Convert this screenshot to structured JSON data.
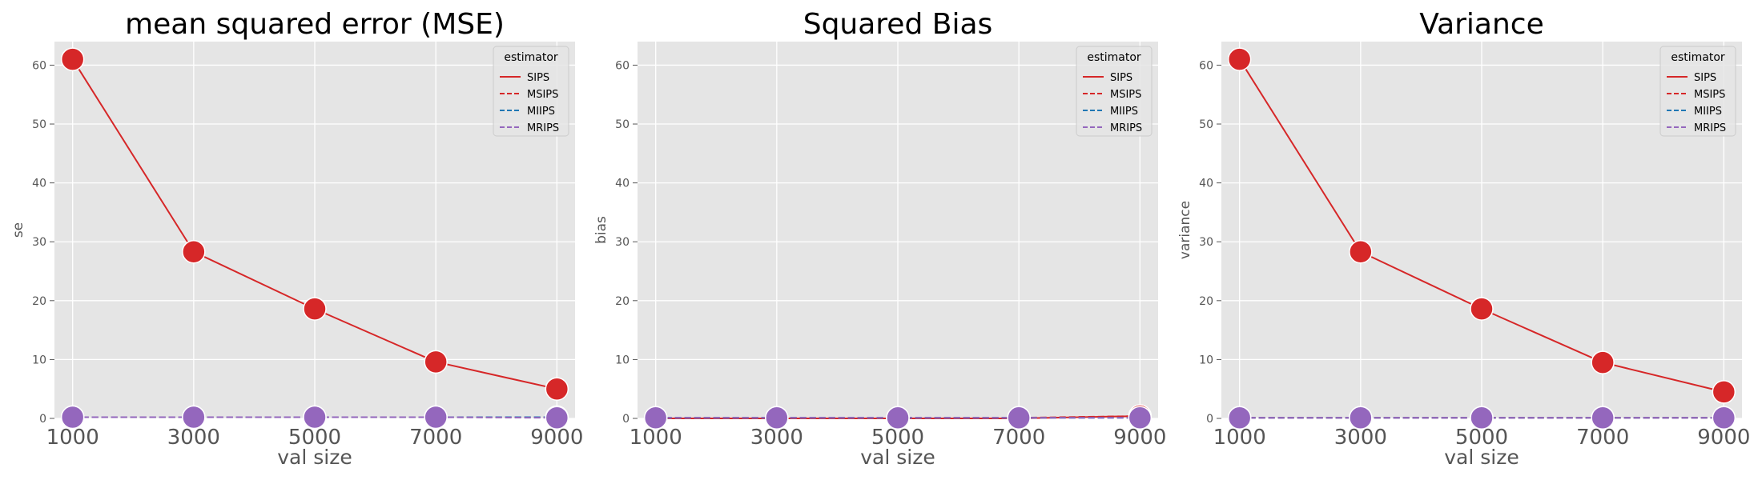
{
  "chart_data": [
    {
      "type": "line",
      "title": "mean squared error (MSE)",
      "xlabel": "val size",
      "ylabel": "se",
      "x": [
        1000,
        3000,
        5000,
        7000,
        9000
      ],
      "xticks": [
        "1000",
        "3000",
        "5000",
        "7000",
        "9000"
      ],
      "yticks": [
        0,
        10,
        20,
        30,
        40,
        50,
        60
      ],
      "ylim": [
        0,
        64
      ],
      "grid": true,
      "legend": {
        "title": "estimator",
        "placement": "top-right"
      },
      "series": [
        {
          "name": "SIPS",
          "style": "solid",
          "color": "#d62728",
          "values": [
            61.0,
            28.3,
            18.6,
            9.6,
            5.0
          ]
        },
        {
          "name": "MSIPS",
          "style": "dashed",
          "color": "#d62728",
          "values": [
            0.2,
            0.2,
            0.2,
            0.2,
            0.2
          ]
        },
        {
          "name": "MIIPS",
          "style": "dashed",
          "color": "#1f77b4",
          "values": [
            0.2,
            0.2,
            0.2,
            0.2,
            0.2
          ]
        },
        {
          "name": "MRIPS",
          "style": "dashed",
          "color": "#9467bd",
          "values": [
            0.2,
            0.2,
            0.2,
            0.2,
            0.1
          ]
        }
      ]
    },
    {
      "type": "line",
      "title": "Squared Bias",
      "xlabel": "val size",
      "ylabel": "bias",
      "x": [
        1000,
        3000,
        5000,
        7000,
        9000
      ],
      "xticks": [
        "1000",
        "3000",
        "5000",
        "7000",
        "9000"
      ],
      "yticks": [
        0,
        10,
        20,
        30,
        40,
        50,
        60
      ],
      "ylim": [
        0,
        64
      ],
      "grid": true,
      "legend": {
        "title": "estimator",
        "placement": "top-right"
      },
      "series": [
        {
          "name": "SIPS",
          "style": "solid",
          "color": "#d62728",
          "values": [
            0.0,
            0.0,
            0.0,
            0.0,
            0.4
          ]
        },
        {
          "name": "MSIPS",
          "style": "dashed",
          "color": "#d62728",
          "values": [
            0.1,
            0.1,
            0.1,
            0.1,
            0.4
          ]
        },
        {
          "name": "MIIPS",
          "style": "dashed",
          "color": "#1f77b4",
          "values": [
            0.1,
            0.1,
            0.1,
            0.1,
            0.1
          ]
        },
        {
          "name": "MRIPS",
          "style": "dashed",
          "color": "#9467bd",
          "values": [
            0.1,
            0.1,
            0.1,
            0.1,
            0.1
          ]
        }
      ]
    },
    {
      "type": "line",
      "title": "Variance",
      "xlabel": "val size",
      "ylabel": "variance",
      "x": [
        1000,
        3000,
        5000,
        7000,
        9000
      ],
      "xticks": [
        "1000",
        "3000",
        "5000",
        "7000",
        "9000"
      ],
      "yticks": [
        0,
        10,
        20,
        30,
        40,
        50,
        60
      ],
      "ylim": [
        0,
        64
      ],
      "grid": true,
      "legend": {
        "title": "estimator",
        "placement": "top-right"
      },
      "series": [
        {
          "name": "SIPS",
          "style": "solid",
          "color": "#d62728",
          "values": [
            61.0,
            28.3,
            18.6,
            9.5,
            4.5
          ]
        },
        {
          "name": "MSIPS",
          "style": "dashed",
          "color": "#d62728",
          "values": [
            0.1,
            0.1,
            0.1,
            0.1,
            0.1
          ]
        },
        {
          "name": "MIIPS",
          "style": "dashed",
          "color": "#1f77b4",
          "values": [
            0.1,
            0.1,
            0.1,
            0.1,
            0.1
          ]
        },
        {
          "name": "MRIPS",
          "style": "dashed",
          "color": "#9467bd",
          "values": [
            0.1,
            0.1,
            0.1,
            0.1,
            0.1
          ]
        }
      ]
    }
  ]
}
